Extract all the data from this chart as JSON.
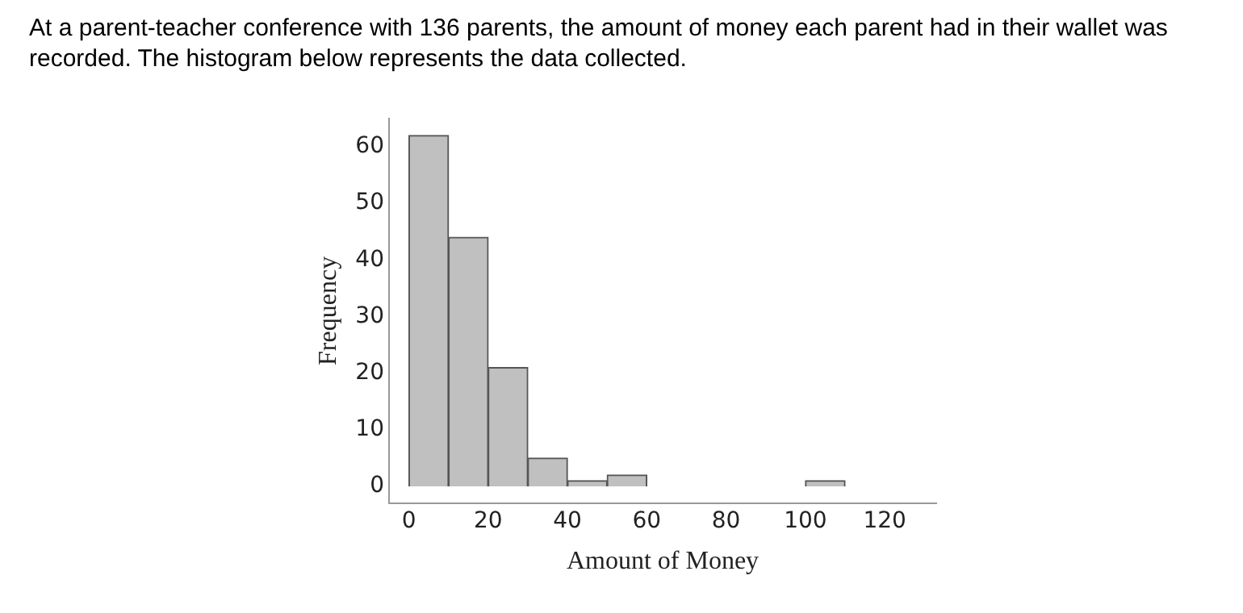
{
  "chart_data": {
    "type": "histogram",
    "title": "At a parent-teacher conference with 136 parents, the amount of money each parent had in their wallet was recorded. The histogram below represents the data collected.",
    "xlabel": "Amount of Money",
    "ylabel": "Frequency",
    "bins": [
      0,
      10,
      20,
      30,
      40,
      50,
      60,
      70,
      80,
      90,
      100,
      110
    ],
    "values": [
      62,
      44,
      21,
      5,
      1,
      2,
      0,
      0,
      0,
      0,
      1
    ],
    "color": "#c0c0c0",
    "xlim": [
      -5,
      133
    ],
    "xticks": [
      0,
      20,
      40,
      60,
      80,
      100,
      120
    ],
    "ylim": [
      -3,
      65
    ],
    "yticks": [
      0,
      10,
      20,
      30,
      40,
      50,
      60
    ],
    "grid": false
  }
}
